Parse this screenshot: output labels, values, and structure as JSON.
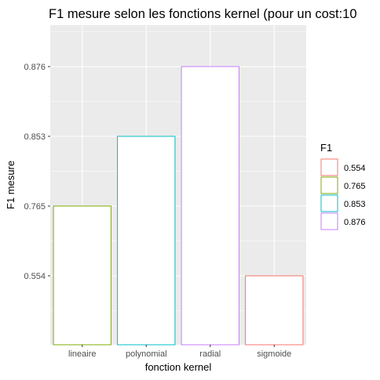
{
  "chart_data": {
    "type": "bar",
    "title": "F1 mesure selon les fonctions kernel (pour un cost:10",
    "xlabel": "fonction kernel",
    "ylabel": "F1 mesure",
    "categories": [
      "lineaire",
      "polynomial",
      "radial",
      "sigmoide"
    ],
    "values": [
      0.765,
      0.853,
      0.876,
      0.554
    ],
    "bar_category": [
      "0.765",
      "0.853",
      "0.876",
      "0.554"
    ],
    "y_axis_type": "discrete",
    "y_ticks": [
      "0.554",
      "0.765",
      "0.853",
      "0.876"
    ],
    "bar_fill": "#ffffff",
    "panel_background": "#ebebeb",
    "grid": true,
    "legend": {
      "title": "F1",
      "placement": "right",
      "entries": [
        {
          "label": "0.554",
          "color": "#F8766D"
        },
        {
          "label": "0.765",
          "color": "#7CAE00"
        },
        {
          "label": "0.853",
          "color": "#00BFC4"
        },
        {
          "label": "0.876",
          "color": "#C77CFF"
        }
      ]
    }
  }
}
